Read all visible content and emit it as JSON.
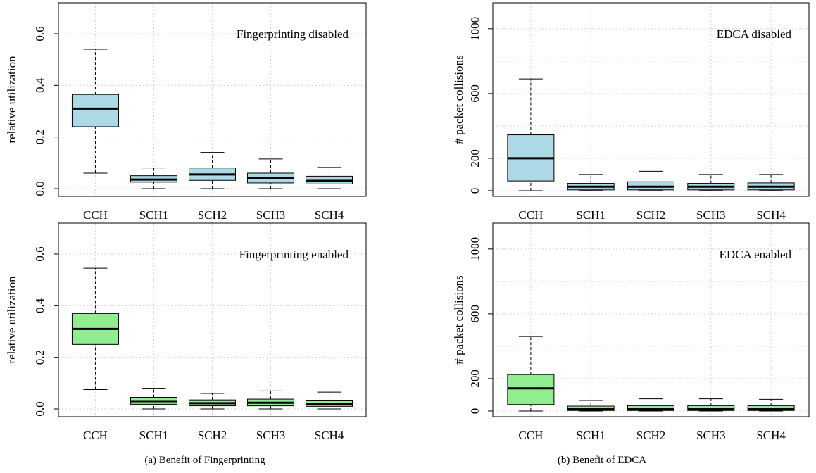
{
  "captions": {
    "left": "(a) Benefit of Fingerprinting",
    "right": "(b) Benefit of EDCA"
  },
  "colors": {
    "disabled_fill": "#add8e6",
    "enabled_fill": "#90ee90",
    "grid": "#d3d3d3"
  },
  "chart_data": [
    {
      "type": "boxplot",
      "annotation": "Fingerprinting disabled",
      "xlabel": "",
      "ylabel": "relative utilization",
      "ylim": [
        -0.03,
        0.72
      ],
      "yticks": [
        0.0,
        0.2,
        0.4,
        0.6
      ],
      "ytick_labels": [
        "0.0",
        "0.2",
        "0.4",
        "0.6"
      ],
      "grid": true,
      "fill": "#add8e6",
      "categories": [
        "CCH",
        "SCH1",
        "SCH2",
        "SCH3",
        "SCH4"
      ],
      "boxes": [
        {
          "category": "CCH",
          "min": 0.06,
          "q1": 0.24,
          "median": 0.31,
          "q3": 0.365,
          "max": 0.54
        },
        {
          "category": "SCH1",
          "min": 0.0,
          "q1": 0.025,
          "median": 0.035,
          "q3": 0.05,
          "max": 0.08
        },
        {
          "category": "SCH2",
          "min": 0.0,
          "q1": 0.032,
          "median": 0.055,
          "q3": 0.08,
          "max": 0.14
        },
        {
          "category": "SCH3",
          "min": 0.0,
          "q1": 0.022,
          "median": 0.04,
          "q3": 0.06,
          "max": 0.115
        },
        {
          "category": "SCH4",
          "min": 0.0,
          "q1": 0.018,
          "median": 0.03,
          "q3": 0.048,
          "max": 0.082
        }
      ]
    },
    {
      "type": "boxplot",
      "annotation": "EDCA disabled",
      "xlabel": "",
      "ylabel": "# packet collisions",
      "ylim": [
        -35,
        1160
      ],
      "yticks": [
        0,
        200,
        600,
        1000
      ],
      "ytick_labels": [
        "0",
        "200",
        "600",
        "1000"
      ],
      "grid_values": [
        0,
        200,
        400,
        600,
        800,
        1000
      ],
      "grid": true,
      "fill": "#add8e6",
      "categories": [
        "CCH",
        "SCH1",
        "SCH2",
        "SCH3",
        "SCH4"
      ],
      "boxes": [
        {
          "category": "CCH",
          "min": 0,
          "q1": 60,
          "median": 200,
          "q3": 345,
          "max": 690
        },
        {
          "category": "SCH1",
          "min": 0,
          "q1": 5,
          "median": 25,
          "q3": 45,
          "max": 100
        },
        {
          "category": "SCH2",
          "min": 0,
          "q1": 5,
          "median": 25,
          "q3": 55,
          "max": 120
        },
        {
          "category": "SCH3",
          "min": 0,
          "q1": 5,
          "median": 25,
          "q3": 45,
          "max": 100
        },
        {
          "category": "SCH4",
          "min": 0,
          "q1": 5,
          "median": 25,
          "q3": 48,
          "max": 100
        }
      ]
    },
    {
      "type": "boxplot",
      "annotation": "Fingerprinting enabled",
      "xlabel": "",
      "ylabel": "relative utilization",
      "ylim": [
        -0.03,
        0.72
      ],
      "yticks": [
        0.0,
        0.2,
        0.4,
        0.6
      ],
      "ytick_labels": [
        "0.0",
        "0.2",
        "0.4",
        "0.6"
      ],
      "grid": true,
      "fill": "#90ee90",
      "categories": [
        "CCH",
        "SCH1",
        "SCH2",
        "SCH3",
        "SCH4"
      ],
      "boxes": [
        {
          "category": "CCH",
          "min": 0.075,
          "q1": 0.25,
          "median": 0.31,
          "q3": 0.37,
          "max": 0.545
        },
        {
          "category": "SCH1",
          "min": 0.0,
          "q1": 0.018,
          "median": 0.03,
          "q3": 0.045,
          "max": 0.08
        },
        {
          "category": "SCH2",
          "min": 0.0,
          "q1": 0.012,
          "median": 0.022,
          "q3": 0.035,
          "max": 0.06
        },
        {
          "category": "SCH3",
          "min": 0.0,
          "q1": 0.012,
          "median": 0.024,
          "q3": 0.038,
          "max": 0.07
        },
        {
          "category": "SCH4",
          "min": 0.0,
          "q1": 0.01,
          "median": 0.02,
          "q3": 0.034,
          "max": 0.065
        }
      ]
    },
    {
      "type": "boxplot",
      "annotation": "EDCA enabled",
      "xlabel": "",
      "ylabel": "# packet collisions",
      "ylim": [
        -35,
        1160
      ],
      "yticks": [
        0,
        200,
        600,
        1000
      ],
      "ytick_labels": [
        "0",
        "200",
        "600",
        "1000"
      ],
      "grid_values": [
        0,
        200,
        400,
        600,
        800,
        1000
      ],
      "grid": true,
      "fill": "#90ee90",
      "categories": [
        "CCH",
        "SCH1",
        "SCH2",
        "SCH3",
        "SCH4"
      ],
      "boxes": [
        {
          "category": "CCH",
          "min": 0,
          "q1": 40,
          "median": 140,
          "q3": 225,
          "max": 460
        },
        {
          "category": "SCH1",
          "min": 0,
          "q1": 3,
          "median": 15,
          "q3": 30,
          "max": 65
        },
        {
          "category": "SCH2",
          "min": 0,
          "q1": 3,
          "median": 15,
          "q3": 33,
          "max": 75
        },
        {
          "category": "SCH3",
          "min": 0,
          "q1": 3,
          "median": 15,
          "q3": 33,
          "max": 75
        },
        {
          "category": "SCH4",
          "min": 0,
          "q1": 3,
          "median": 15,
          "q3": 33,
          "max": 72
        }
      ]
    }
  ]
}
